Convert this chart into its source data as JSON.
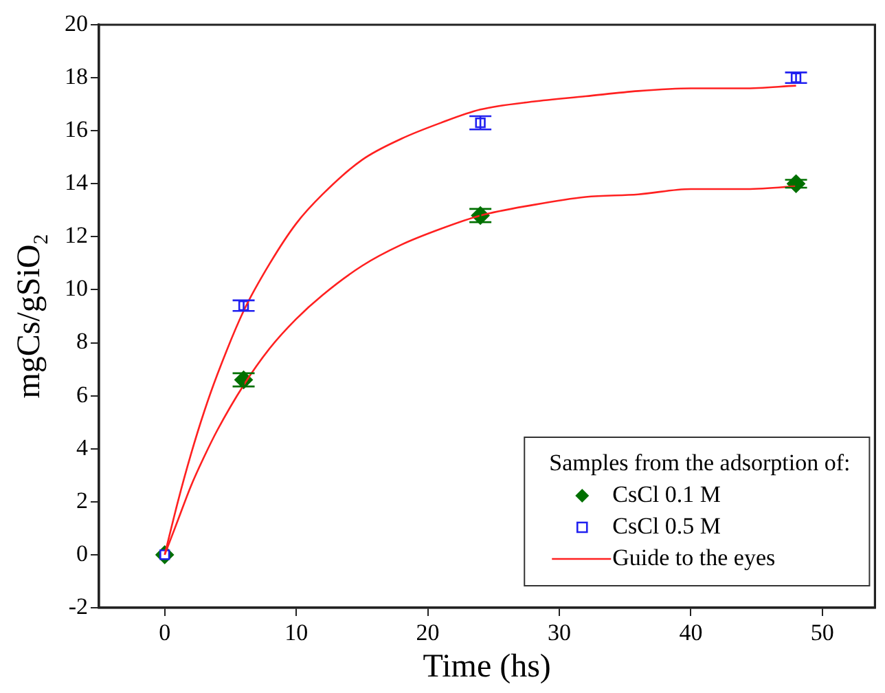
{
  "chart_data": {
    "type": "scatter",
    "xlabel": "Time (hs)",
    "ylabel": "mgCs/gSiO$_{2}$",
    "legend_title": "Samples from the adsorption of:",
    "legend": "bottom right",
    "grid": false,
    "xlim": [
      -5,
      54
    ],
    "xticks": [
      0,
      10,
      20,
      30,
      40,
      50
    ],
    "ylim": [
      -2,
      20
    ],
    "yticks": [
      -2,
      0,
      2,
      4,
      6,
      8,
      10,
      12,
      14,
      16,
      18,
      20
    ],
    "series": [
      {
        "name": "CsCl 0.1 M",
        "marker": "diamond",
        "color": "#007000",
        "x": [
          0,
          6,
          24,
          48
        ],
        "values": [
          0,
          6.6,
          12.8,
          14.0
        ],
        "errors": [
          null,
          0.25,
          0.25,
          0.15
        ]
      },
      {
        "name": "CsCl 0.5 M",
        "marker": "square",
        "color": "#2020f0",
        "x": [
          0,
          6,
          24,
          48
        ],
        "values": [
          0,
          9.4,
          16.3,
          18.0
        ],
        "errors": [
          null,
          0.2,
          0.25,
          0.2
        ]
      },
      {
        "name": "Guide to the eyes",
        "type": "line",
        "marker": "none",
        "color": "#ff2020",
        "x": [
          0,
          1,
          2,
          3,
          4,
          6,
          8,
          10,
          12,
          15,
          18,
          21,
          24,
          28,
          32,
          36,
          40,
          44,
          48
        ],
        "values": [
          0,
          2.0,
          3.8,
          5.4,
          6.8,
          9.2,
          11.0,
          12.5,
          13.6,
          14.9,
          15.7,
          16.3,
          16.8,
          17.1,
          17.3,
          17.5,
          17.6,
          17.6,
          17.7
        ]
      },
      {
        "type": "line",
        "marker": "none",
        "color": "#ff2020",
        "x": [
          0,
          1,
          2,
          3,
          4,
          6,
          8,
          10,
          12,
          15,
          18,
          21,
          24,
          28,
          32,
          36,
          40,
          44,
          48
        ],
        "values": [
          0,
          1.3,
          2.6,
          3.7,
          4.7,
          6.4,
          7.8,
          8.9,
          9.8,
          10.9,
          11.7,
          12.3,
          12.8,
          13.2,
          13.5,
          13.6,
          13.8,
          13.8,
          13.9
        ]
      }
    ]
  }
}
